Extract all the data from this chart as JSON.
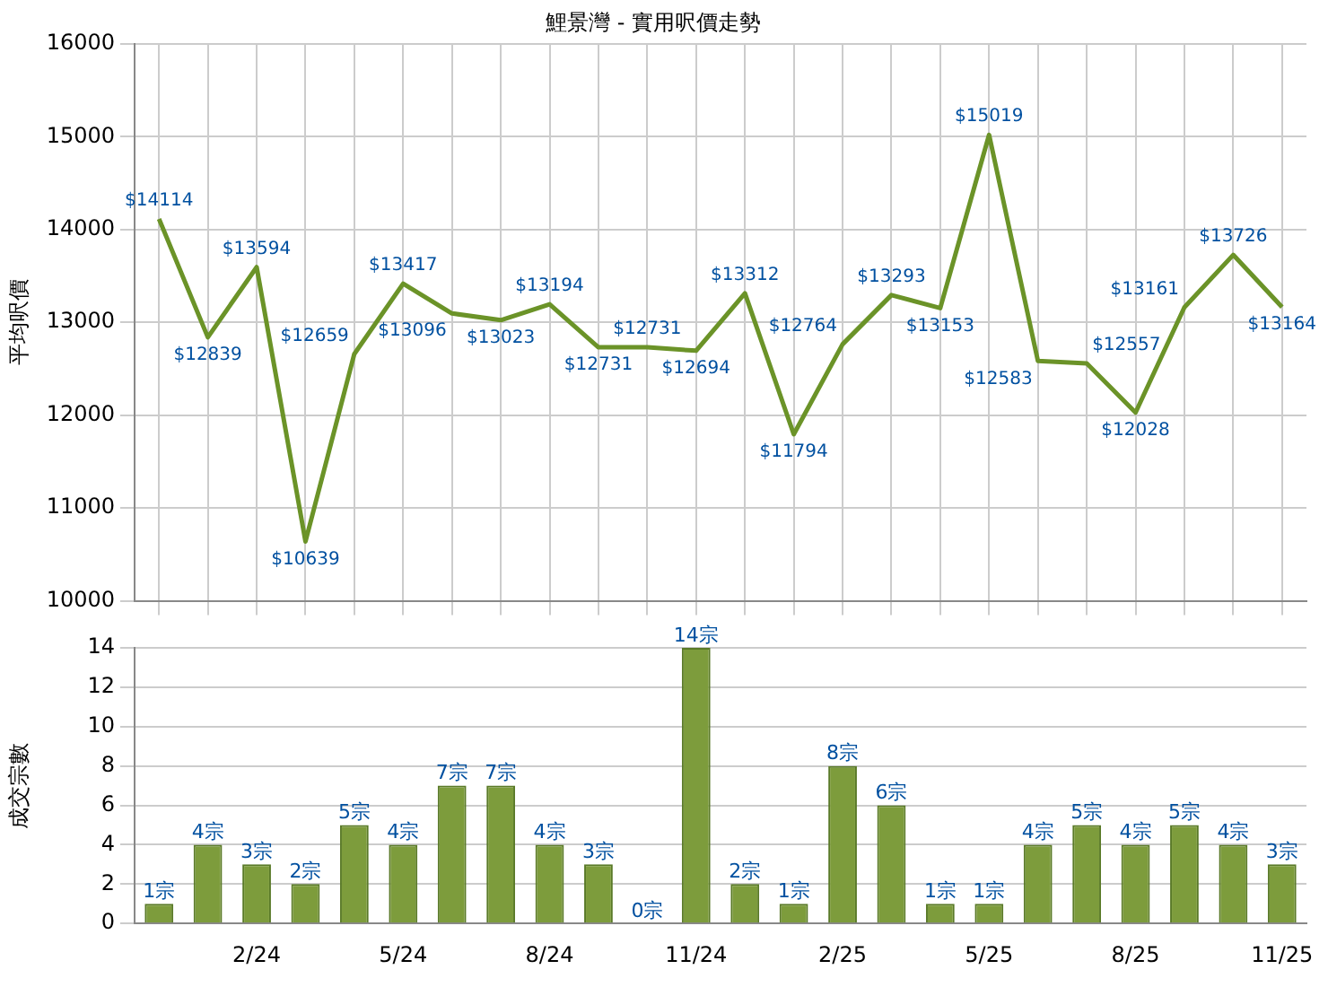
{
  "chart_data": [
    {
      "type": "line",
      "title": "鯉景灣 - 實用呎價走勢",
      "ylabel": "平均呎價",
      "categories": [
        null,
        null,
        null,
        null,
        null,
        null,
        null,
        null,
        null,
        null,
        null,
        null,
        null,
        null,
        null,
        null,
        null,
        null,
        null,
        null,
        null,
        null,
        null,
        null
      ],
      "series": [
        {
          "color": "#6b9328",
          "values": [
            14114,
            12839,
            13594,
            10639,
            12659,
            13417,
            13096,
            13023,
            13194,
            12731,
            12731,
            12694,
            13312,
            11794,
            12764,
            13293,
            13153,
            15019,
            12583,
            12557,
            12028,
            13161,
            13726,
            13164
          ],
          "value_labels": [
            "$14114",
            "$12839",
            "$13594",
            "$10639",
            "$12659",
            "$13417",
            "$13096",
            "$13023",
            "$13194",
            "$12731",
            "$12731",
            "$12694",
            "$13312",
            "$11794",
            "$12764",
            "$13293",
            "$13153",
            "$15019",
            "$12583",
            "$12557",
            "$12028",
            "$13161",
            "$13726",
            "$13164"
          ]
        }
      ],
      "ylim": [
        10000,
        16000
      ],
      "yticks": [
        10000,
        11000,
        12000,
        13000,
        14000,
        15000,
        16000
      ],
      "grid": true,
      "legend": false,
      "marker": "none",
      "tick_labels": "y"
    },
    {
      "type": "bar",
      "ylabel": "成交宗數",
      "categories": [
        null,
        null,
        "2/24",
        null,
        null,
        "5/24",
        null,
        null,
        "8/24",
        null,
        null,
        "11/24",
        null,
        null,
        "2/25",
        null,
        null,
        "5/25",
        null,
        null,
        "8/25",
        null,
        null,
        "11/25"
      ],
      "series": [
        {
          "color": "#7d9c3c",
          "values": [
            1,
            4,
            3,
            2,
            5,
            4,
            7,
            7,
            4,
            3,
            0,
            14,
            2,
            1,
            8,
            6,
            1,
            1,
            4,
            5,
            4,
            5,
            4,
            3
          ],
          "value_labels": [
            "1宗",
            "4宗",
            "3宗",
            "2宗",
            "5宗",
            "4宗",
            "7宗",
            "7宗",
            "4宗",
            "3宗",
            "0宗",
            "14宗",
            "2宗",
            "1宗",
            "8宗",
            "6宗",
            "1宗",
            "1宗",
            "4宗",
            "5宗",
            "4宗",
            "5宗",
            "4宗",
            "3宗"
          ]
        }
      ],
      "ylim": [
        0,
        14
      ],
      "yticks": [
        0,
        2,
        4,
        6,
        8,
        10,
        12,
        14
      ],
      "grid": "y",
      "legend": false
    }
  ]
}
